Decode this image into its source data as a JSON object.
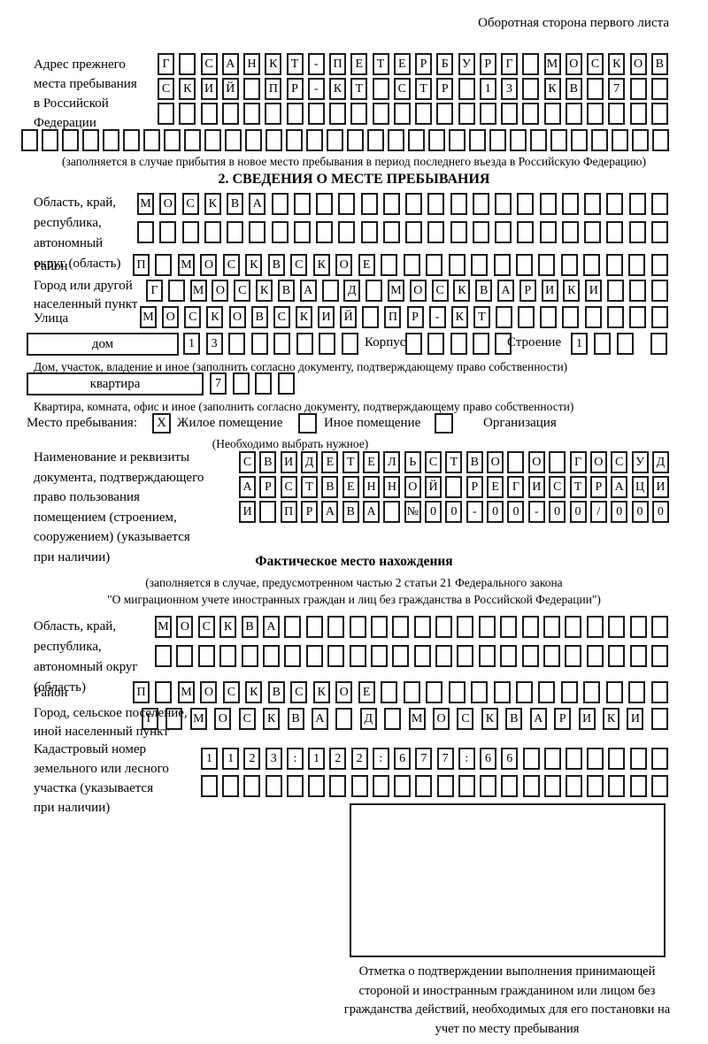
{
  "page": {
    "header_note": "Оборотная сторона первого листа"
  },
  "prev_address": {
    "label": "Адрес прежнего\nместа пребывания\nв Российской\nФедерации",
    "rows": [
      {
        "text": "Г САНКТ-ПЕТЕРБУРГ МОСКОВ",
        "len": 24
      },
      {
        "text": "СКИЙ ПР-КТ СТР 13 КВ 7",
        "len": 24
      },
      {
        "text": "",
        "len": 24
      },
      {
        "text": "",
        "len": 32
      }
    ],
    "caption": "(заполняется в случае прибытия в новое место пребывания в период последнего въезда в Российскую Федерацию)"
  },
  "section2": {
    "title": "2. СВЕДЕНИЯ О МЕСТЕ ПРЕБЫВАНИЯ",
    "region": {
      "label": "Область, край,\nреспублика,\nавтономный\nокруг (область)",
      "rows": [
        {
          "text": "МОСКВА",
          "len": 24
        },
        {
          "text": "",
          "len": 24
        }
      ]
    },
    "district": {
      "label": "Район",
      "cells": {
        "text": "П МОСКВСКОЕ",
        "len": 24
      }
    },
    "city": {
      "label": "Город или другой\nнаселенный пункт",
      "cells": {
        "text": "Г МОСКВА Д МОСКВАРИКИ",
        "len": 24
      }
    },
    "street": {
      "label": "Улица",
      "cells": {
        "text": "МОСКОВСКИЙ ПР-КТ",
        "len": 24
      }
    },
    "house": {
      "box_label": "дом",
      "cells": {
        "text": "13",
        "len": 8
      },
      "korpus_label": "Корпус",
      "korpus_cells": {
        "text": "",
        "len": 5
      },
      "stroenie_label": "Строение",
      "stroenie_cells": {
        "text": "1",
        "len": 3
      },
      "stroenie_extra": {
        "text": "",
        "len": 1
      }
    },
    "house_note": "Дом, участок, владение и иное (заполнить согласно документу, подтверждающему право собственности)",
    "apartment": {
      "box_label": "квартира",
      "cells": {
        "text": "7",
        "len": 4
      }
    },
    "apartment_note": "Квартира, комната, офис и иное (заполнить согласно документу, подтверждающему право собственности)",
    "stay": {
      "label": "Место пребывания:",
      "options": [
        {
          "mark": "X",
          "label": "Жилое помещение"
        },
        {
          "mark": "",
          "label": "Иное помещение"
        },
        {
          "mark": "",
          "label": "Организация"
        }
      ],
      "caption": "(Необходимо выбрать нужное)"
    },
    "document": {
      "label": "Наименование и реквизиты\nдокумента, подтверждающего\nправо пользования\nпомещением (строением,\nсооружением) (указывается\nпри наличии)",
      "rows": [
        {
          "text": "СВИДЕТЕЛЬСТВО О ГОСУД",
          "len": 21
        },
        {
          "text": "АРСТВЕННОЙ РЕГИСТРАЦИ",
          "len": 21
        },
        {
          "text": "И ПРАВА №00-00-00/000",
          "len": 21
        }
      ]
    }
  },
  "actual_location": {
    "title": "Фактическое место нахождения",
    "note1": "(заполняется в случае, предусмотренном частью 2 статьи 21 Федерального закона",
    "note2": "\"О миграционном учете иностранных граждан и лиц без гражданства в Российской Федерации\")",
    "region": {
      "label": "Область, край,\nреспублика,\nавтономный округ\n(область)",
      "rows": [
        {
          "text": "МОСКВА",
          "len": 24
        },
        {
          "text": "",
          "len": 24
        }
      ]
    },
    "district": {
      "label": "Район",
      "cells": {
        "text": "П МОСКВСКОЕ",
        "len": 24
      }
    },
    "city": {
      "label": "Город, сельское поселение,\nиной населенный пункт",
      "cells": {
        "text": "Г МОСКВА Д МОСКВАРИКИ",
        "len": 22
      }
    },
    "cadastral": {
      "label": "Кадастровый номер\nземельного или лесного\nучастка (указывается\nпри наличии)",
      "rows": [
        {
          "text": "1123:122:677:66",
          "len": 22
        },
        {
          "text": "",
          "len": 22
        }
      ]
    },
    "stamp_caption": "Отметка о подтверждении выполнения принимающей стороной и иностранным гражданином или лицом без гражданства действий, необходимых для его постановки на учет по месту пребывания"
  }
}
